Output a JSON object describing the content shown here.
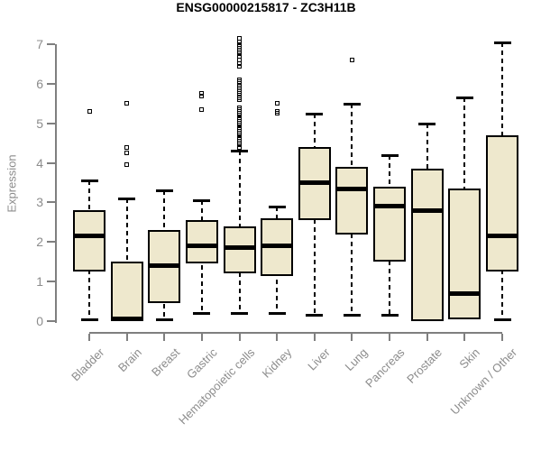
{
  "title": "ENSG00000215817 - ZC3H11B",
  "chart_data": {
    "type": "boxplot",
    "title": "ENSG00000215817 - ZC3H11B",
    "xlabel": "",
    "ylabel": "Expression",
    "ylim": [
      0,
      7
    ],
    "yticks": [
      0,
      1,
      2,
      3,
      4,
      5,
      6,
      7
    ],
    "grid": false,
    "legend": "none",
    "colors": {
      "box_fill": "#EEE8CD",
      "box_stroke": "#000000",
      "axis_line": "#7f7f7f",
      "axis_text": "#8c8c8c",
      "title_text": "#000000"
    },
    "categories": [
      "Bladder",
      "Brain",
      "Breast",
      "Gastric",
      "Hematopoietic cells",
      "Kidney",
      "Liver",
      "Lung",
      "Pancreas",
      "Prostate",
      "Skin",
      "Unknown / Other"
    ],
    "series": [
      {
        "name": "Bladder",
        "low": 0.05,
        "q1": 1.25,
        "median": 2.15,
        "q3": 2.8,
        "high": 3.55,
        "outliers": [
          5.3
        ]
      },
      {
        "name": "Brain",
        "low": 0.0,
        "q1": 0.0,
        "median": 0.05,
        "q3": 1.5,
        "high": 3.1,
        "outliers": [
          5.5,
          4.4,
          4.25,
          3.95
        ]
      },
      {
        "name": "Breast",
        "low": 0.05,
        "q1": 0.45,
        "median": 1.4,
        "q3": 2.3,
        "high": 3.3,
        "outliers": []
      },
      {
        "name": "Gastric",
        "low": 0.2,
        "q1": 1.45,
        "median": 1.9,
        "q3": 2.55,
        "high": 3.05,
        "outliers": [
          5.75,
          5.7,
          5.35
        ]
      },
      {
        "name": "Hematopoietic cells",
        "low": 0.2,
        "q1": 1.2,
        "median": 1.85,
        "q3": 2.4,
        "high": 4.3,
        "outliers": [
          7.15,
          7.05,
          7.0,
          6.95,
          6.9,
          6.85,
          6.8,
          6.75,
          6.7,
          6.6,
          6.5,
          6.45,
          6.1,
          6.05,
          5.95,
          5.9,
          5.8,
          5.75,
          5.65,
          5.6,
          5.4,
          5.35,
          5.3,
          5.25,
          5.2,
          5.15,
          5.1,
          5.05,
          5.0,
          4.95,
          4.9,
          4.85,
          4.8,
          4.75,
          4.7,
          4.65,
          4.6,
          4.55,
          4.5,
          4.45,
          4.4
        ]
      },
      {
        "name": "Kidney",
        "low": 0.2,
        "q1": 1.15,
        "median": 1.9,
        "q3": 2.6,
        "high": 2.9,
        "outliers": [
          5.5,
          5.3,
          5.25
        ]
      },
      {
        "name": "Liver",
        "low": 0.15,
        "q1": 2.55,
        "median": 3.5,
        "q3": 4.4,
        "high": 5.25,
        "outliers": []
      },
      {
        "name": "Lung",
        "low": 0.15,
        "q1": 2.2,
        "median": 3.35,
        "q3": 3.9,
        "high": 5.5,
        "outliers": [
          6.6
        ]
      },
      {
        "name": "Pancreas",
        "low": 0.15,
        "q1": 1.5,
        "median": 2.9,
        "q3": 3.4,
        "high": 4.2,
        "outliers": []
      },
      {
        "name": "Prostate",
        "low": 0.0,
        "q1": 0.0,
        "median": 2.8,
        "q3": 3.85,
        "high": 5.0,
        "outliers": []
      },
      {
        "name": "Skin",
        "low": 0.05,
        "q1": 0.05,
        "median": 0.7,
        "q3": 3.35,
        "high": 5.65,
        "outliers": []
      },
      {
        "name": "Unknown / Other",
        "low": 0.05,
        "q1": 1.25,
        "median": 2.15,
        "q3": 4.7,
        "high": 7.05,
        "outliers": []
      }
    ]
  }
}
